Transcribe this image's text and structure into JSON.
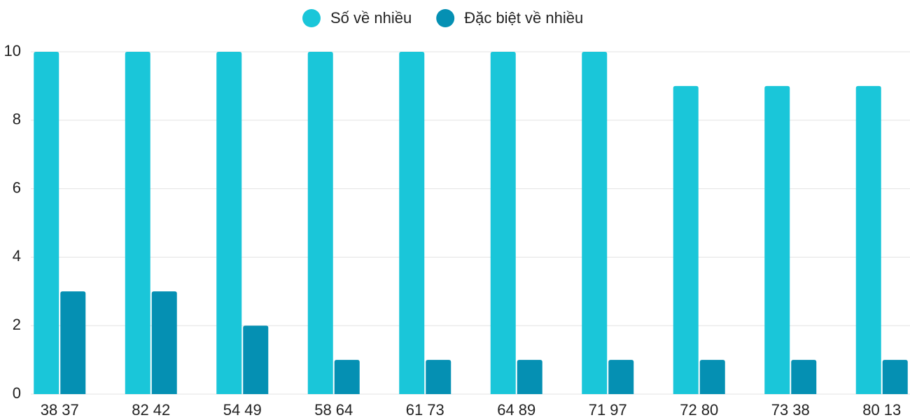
{
  "chart_data": {
    "type": "bar",
    "categories": [
      "38 37",
      "82 42",
      "54 49",
      "58 64",
      "61 73",
      "64 89",
      "71 97",
      "72 80",
      "73 38",
      "80 13"
    ],
    "series": [
      {
        "name": "Số về nhiều",
        "color": "#1ac6d9",
        "values": [
          10,
          10,
          10,
          10,
          10,
          10,
          10,
          9,
          9,
          9
        ]
      },
      {
        "name": "Đặc biệt về nhiều",
        "color": "#0590b3",
        "values": [
          3,
          3,
          2,
          1,
          1,
          1,
          1,
          1,
          1,
          1
        ]
      }
    ],
    "ylim": [
      0,
      10
    ],
    "yticks": [
      0,
      2,
      4,
      6,
      8,
      10
    ],
    "grid": true,
    "legend": "top"
  }
}
